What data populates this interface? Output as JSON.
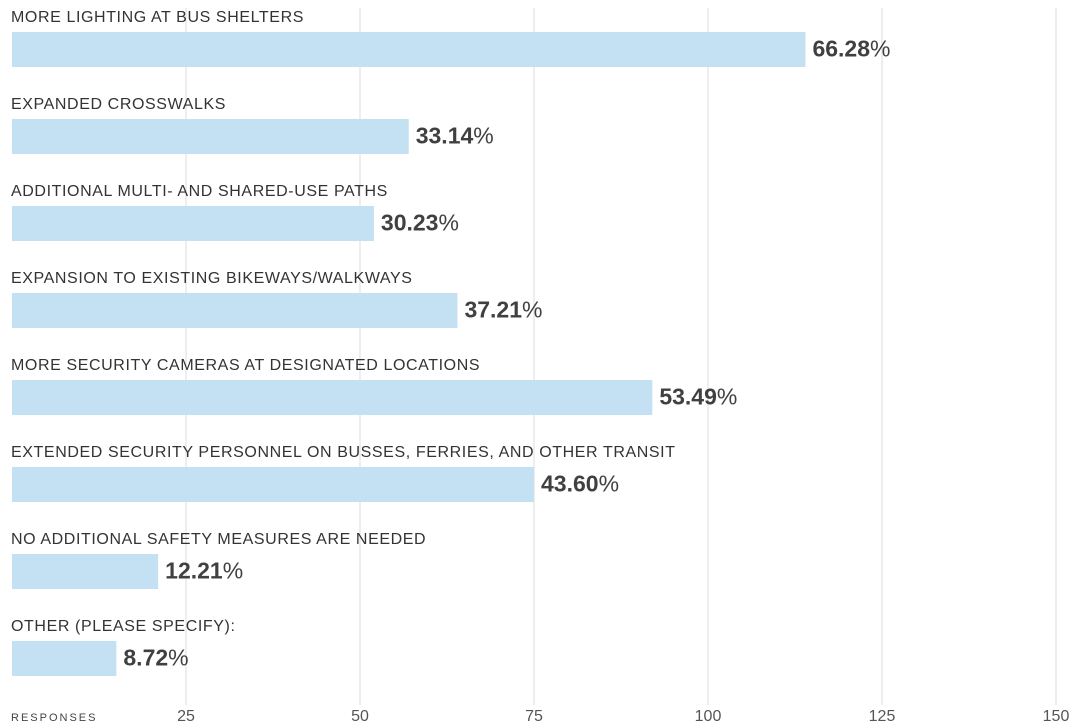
{
  "chart_data": {
    "type": "bar",
    "orientation": "horizontal",
    "categories": [
      "MORE LIGHTING AT BUS SHELTERS",
      "EXPANDED CROSSWALKS",
      "ADDITIONAL MULTI- AND SHARED-USE PATHS",
      "EXPANSION TO EXISTING BIKEWAYS/WALKWAYS",
      "MORE SECURITY CAMERAS AT DESIGNATED LOCATIONS",
      "EXTENDED SECURITY PERSONNEL ON BUSSES, FERRIES, AND OTHER TRANSIT",
      "NO ADDITIONAL SAFETY MEASURES ARE NEEDED",
      "OTHER (PLEASE SPECIFY):"
    ],
    "values": [
      114,
      57,
      52,
      64,
      92,
      75,
      21,
      15
    ],
    "percent_labels": [
      "66.28%",
      "33.14%",
      "30.23%",
      "37.21%",
      "53.49%",
      "43.60%",
      "12.21%",
      "8.72%"
    ],
    "color": "#c4e0f3",
    "xlabel": "RESPONSES",
    "xlim": [
      0,
      150
    ],
    "xticks": [
      25,
      50,
      75,
      100,
      125,
      150
    ],
    "grid": true
  }
}
